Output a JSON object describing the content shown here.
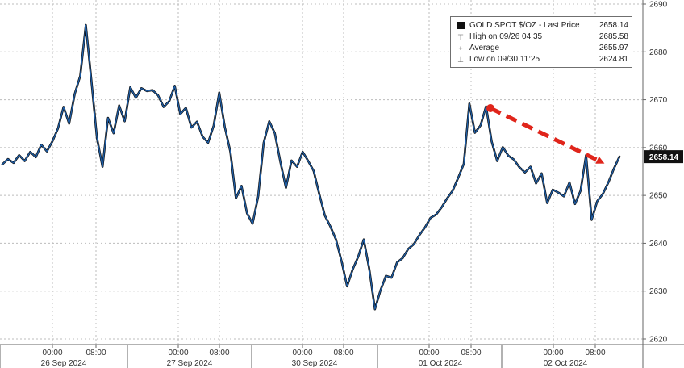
{
  "colors": {
    "price_line": "#1f5fa8",
    "price_line_dark": "#0b0b0b",
    "grid": "#bcbcbc",
    "axis": "#666666",
    "arrow": "#e0251b",
    "last_price_box": "#111111",
    "last_price_text": "#ffffff"
  },
  "legend": {
    "series_label": "GOLD SPOT $/OZ - Last Price",
    "series_value": "2658.14",
    "high_label": "High on 09/26 04:35",
    "high_value": "2685.58",
    "average_label": "Average",
    "average_value": "2655.97",
    "low_label": "Low on 09/30 11:25",
    "low_value": "2624.81"
  },
  "last_price_label": "2658.14",
  "chart_data": {
    "type": "line",
    "title": "",
    "xlabel": "",
    "ylabel": "",
    "ylim": [
      2620,
      2690
    ],
    "y_ticks": [
      2620,
      2630,
      2640,
      2650,
      2660,
      2670,
      2680,
      2690
    ],
    "grid": true,
    "legend_position": "top-right",
    "x_time_labels": [
      "00:00",
      "08:00",
      "00:00",
      "08:00",
      "00:00",
      "08:00",
      "00:00",
      "08:00",
      "00:00",
      "08:00"
    ],
    "x_date_labels": [
      "26 Sep 2024",
      "27 Sep 2024",
      "30 Sep 2024",
      "01 Oct 2024",
      "02 Oct 2024"
    ],
    "series": [
      {
        "name": "GOLD SPOT $/OZ - Last Price",
        "values": [
          2656.5,
          2657.6,
          2656.8,
          2658.4,
          2657.2,
          2659.1,
          2658.0,
          2660.6,
          2659.2,
          2661.3,
          2664.0,
          2668.5,
          2665.0,
          2671.2,
          2675.0,
          2685.6,
          2674.0,
          2662.0,
          2656.0,
          2666.2,
          2663.0,
          2668.8,
          2665.5,
          2672.6,
          2670.4,
          2672.4,
          2671.8,
          2672.0,
          2670.9,
          2668.5,
          2669.7,
          2672.9,
          2667.0,
          2668.3,
          2664.2,
          2665.4,
          2662.3,
          2661.0,
          2664.6,
          2671.5,
          2664.3,
          2659.1,
          2649.4,
          2652.0,
          2646.3,
          2644.1,
          2649.7,
          2661.0,
          2665.5,
          2663.0,
          2657.0,
          2651.6,
          2657.3,
          2656.0,
          2659.1,
          2657.2,
          2655.1,
          2650.3,
          2645.8,
          2643.5,
          2640.8,
          2636.3,
          2631.0,
          2634.5,
          2637.2,
          2640.8,
          2634.5,
          2626.2,
          2630.1,
          2633.2,
          2632.8,
          2636.0,
          2636.9,
          2638.8,
          2639.8,
          2641.7,
          2643.3,
          2645.3,
          2646.0,
          2647.5,
          2649.4,
          2651.0,
          2653.7,
          2656.6,
          2669.2,
          2663.1,
          2664.6,
          2668.6,
          2661.3,
          2657.2,
          2660.1,
          2658.3,
          2657.5,
          2655.9,
          2654.8,
          2656.0,
          2652.5,
          2654.6,
          2648.4,
          2651.2,
          2650.6,
          2649.8,
          2652.7,
          2648.2,
          2651.0,
          2658.4,
          2644.9,
          2648.8,
          2650.3,
          2652.7,
          2655.6,
          2658.1
        ]
      }
    ]
  }
}
